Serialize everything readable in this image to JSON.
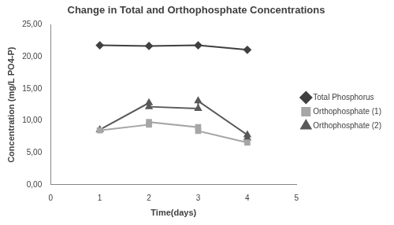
{
  "chart_data": {
    "type": "line",
    "title": "Change in Total and Orthophosphate Concentrations",
    "x_label": "Time(days)",
    "y_label": "Concentration (mg/L PO4-P)",
    "series": [
      {
        "name": "Total Phosphorus",
        "color": "#404040",
        "marker": "diamond",
        "line_style": "solid",
        "x": [
          1,
          2,
          3,
          4
        ],
        "values": [
          21.8,
          21.7,
          21.8,
          21.1
        ]
      },
      {
        "name": "Orthophosphate (1)",
        "color": "#a6a6a6",
        "marker": "square",
        "line_style": "solid",
        "x": [
          1,
          2,
          2,
          3,
          3,
          4
        ],
        "values": [
          8.5,
          9.4,
          9.8,
          9.0,
          8.4,
          6.6
        ]
      },
      {
        "name": "Orthophosphate (2)",
        "color": "#595959",
        "marker": "triangle",
        "line_style": "solid",
        "x": [
          1,
          2,
          2,
          3,
          3,
          4,
          4
        ],
        "values": [
          8.6,
          12.8,
          12.2,
          11.9,
          13.1,
          7.8,
          7.3
        ]
      }
    ],
    "xlim": [
      0,
      5
    ],
    "xticks": [
      0,
      1,
      2,
      3,
      4,
      5
    ],
    "ylim": [
      0,
      25
    ],
    "yticks": [
      {
        "value": 0,
        "label": "0,00"
      },
      {
        "value": 5,
        "label": "5,00"
      },
      {
        "value": 10,
        "label": "10,00"
      },
      {
        "value": 15,
        "label": "15,00"
      },
      {
        "value": 20,
        "label": "20,00"
      },
      {
        "value": 25,
        "label": "25,00"
      }
    ],
    "grid": false,
    "legend": "right"
  }
}
